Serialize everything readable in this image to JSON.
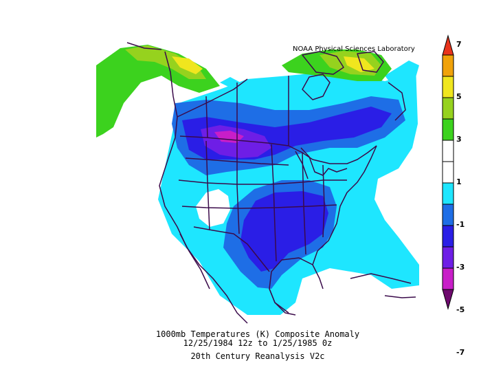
{
  "header": {
    "credit": "NOAA Physical Sciences Laboratory"
  },
  "caption": {
    "line1": "1000mb Temperatures (K)   Composite Anomaly",
    "line2": "12/25/1984 12z  to 1/25/1985 0z",
    "line3": "20th Century Reanalysis V2c"
  },
  "colorbar": {
    "labels": [
      "7",
      "5",
      "3",
      "1",
      "-1",
      "-3",
      "-5",
      "-7"
    ],
    "colors": [
      "#e8341c",
      "#f0a20a",
      "#f0e61e",
      "#96d21e",
      "#3cd21e",
      "#ffffff",
      "#ffffff",
      "#1ee6ff",
      "#1e6ee6",
      "#2a1ee6",
      "#6e1ee6",
      "#c81ec8",
      "#6e0a6e"
    ]
  },
  "palette": {
    "cyan": "#1ee6ff",
    "blue": "#1e6ee6",
    "darkblue": "#2a1ee6",
    "violet": "#6e1ee6",
    "magenta": "#c81ec8",
    "green": "#3cd21e",
    "yellowgreen": "#96d21e",
    "yellow": "#f0e61e",
    "outline": "#3a0a4a"
  }
}
